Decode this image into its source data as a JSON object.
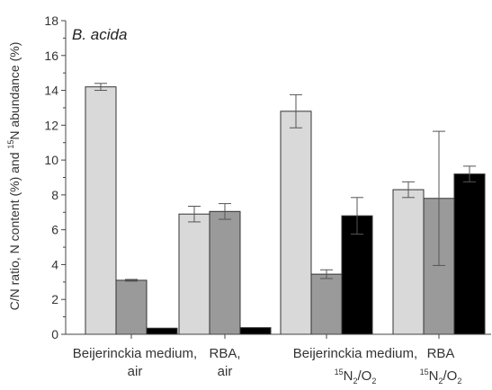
{
  "chart_data": {
    "type": "bar",
    "title": "B. acida",
    "ylabel_parts": {
      "prefix": "C/N ratio, N content (%) and ",
      "sup": "15",
      "suffix": "N abundance (%)"
    },
    "ylim": [
      0,
      18
    ],
    "yticks": [
      "0",
      "2",
      "4",
      "6",
      "8",
      "10",
      "12",
      "14",
      "16",
      "18"
    ],
    "categories": [
      {
        "line1": "Beijerinckia medium,",
        "line2": "air"
      },
      {
        "line1": "RBA,",
        "line2": "air"
      },
      {
        "line1": "Beijerinckia medium,",
        "line2_sup": "15",
        "line2_main": "N",
        "line2_sub": "2",
        "line2_mid": "/O",
        "line2_sub2": "2"
      },
      {
        "line1": "RBA",
        "line2_sup": "15",
        "line2_main": "N",
        "line2_sub": "2",
        "line2_mid": "/O",
        "line2_sub2": "2"
      }
    ],
    "series": [
      {
        "color": "#d9d9d9",
        "values": [
          14.2,
          6.9,
          12.8,
          8.3
        ],
        "errors": [
          0.2,
          0.45,
          0.95,
          0.45
        ]
      },
      {
        "color": "#9a9a9a",
        "values": [
          3.1,
          7.05,
          3.45,
          7.8
        ],
        "errors": [
          0.05,
          0.45,
          0.25,
          3.85
        ]
      },
      {
        "color": "#000000",
        "values": [
          0.35,
          0.38,
          6.8,
          9.2
        ],
        "errors": [
          0,
          0,
          1.05,
          0.45
        ]
      }
    ],
    "grid": false,
    "legend": "none"
  }
}
